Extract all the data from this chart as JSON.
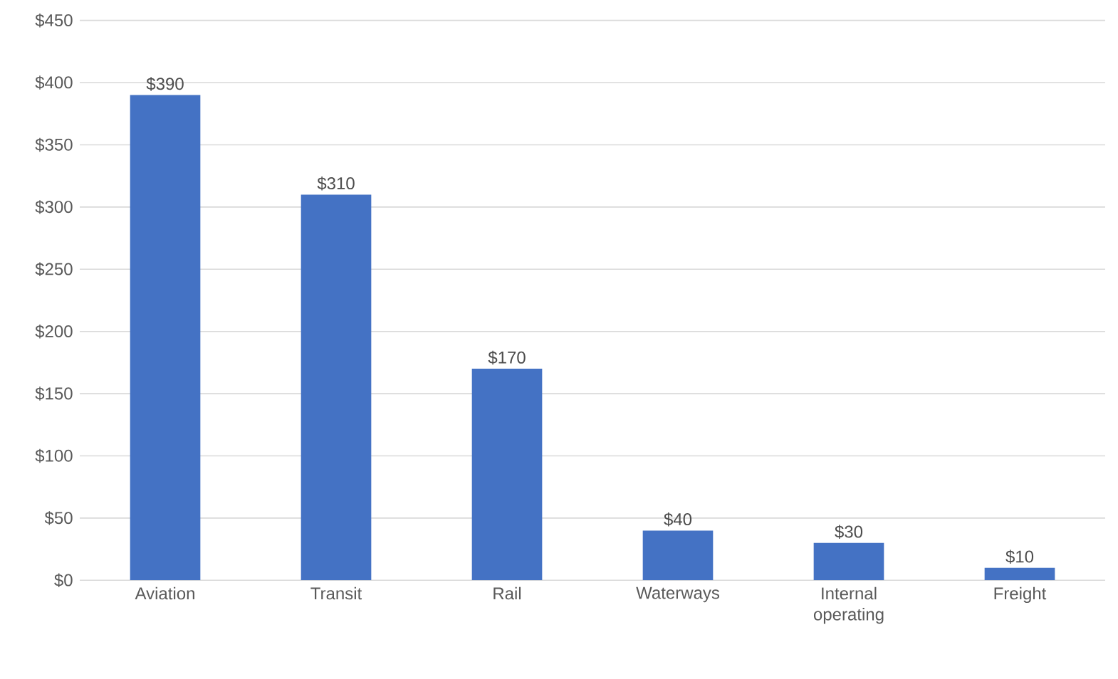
{
  "chart_data": {
    "type": "bar",
    "categories": [
      "Aviation",
      "Transit",
      "Rail",
      "Waterways",
      "Internal operating",
      "Freight"
    ],
    "values": [
      390,
      310,
      170,
      40,
      30,
      10
    ],
    "value_labels": [
      "$390",
      "$310",
      "$170",
      "$40",
      "$30",
      "$10"
    ],
    "color": "#4472c4",
    "ylim": [
      0,
      450
    ],
    "yticks": [
      {
        "value": 0,
        "label": "$0"
      },
      {
        "value": 50,
        "label": "$50"
      },
      {
        "value": 100,
        "label": "$100"
      },
      {
        "value": 150,
        "label": "$150"
      },
      {
        "value": 200,
        "label": "$200"
      },
      {
        "value": 250,
        "label": "$250"
      },
      {
        "value": 300,
        "label": "$300"
      },
      {
        "value": 350,
        "label": "$350"
      },
      {
        "value": 400,
        "label": "$400"
      },
      {
        "value": 450,
        "label": "$450"
      }
    ],
    "grid": "y"
  }
}
